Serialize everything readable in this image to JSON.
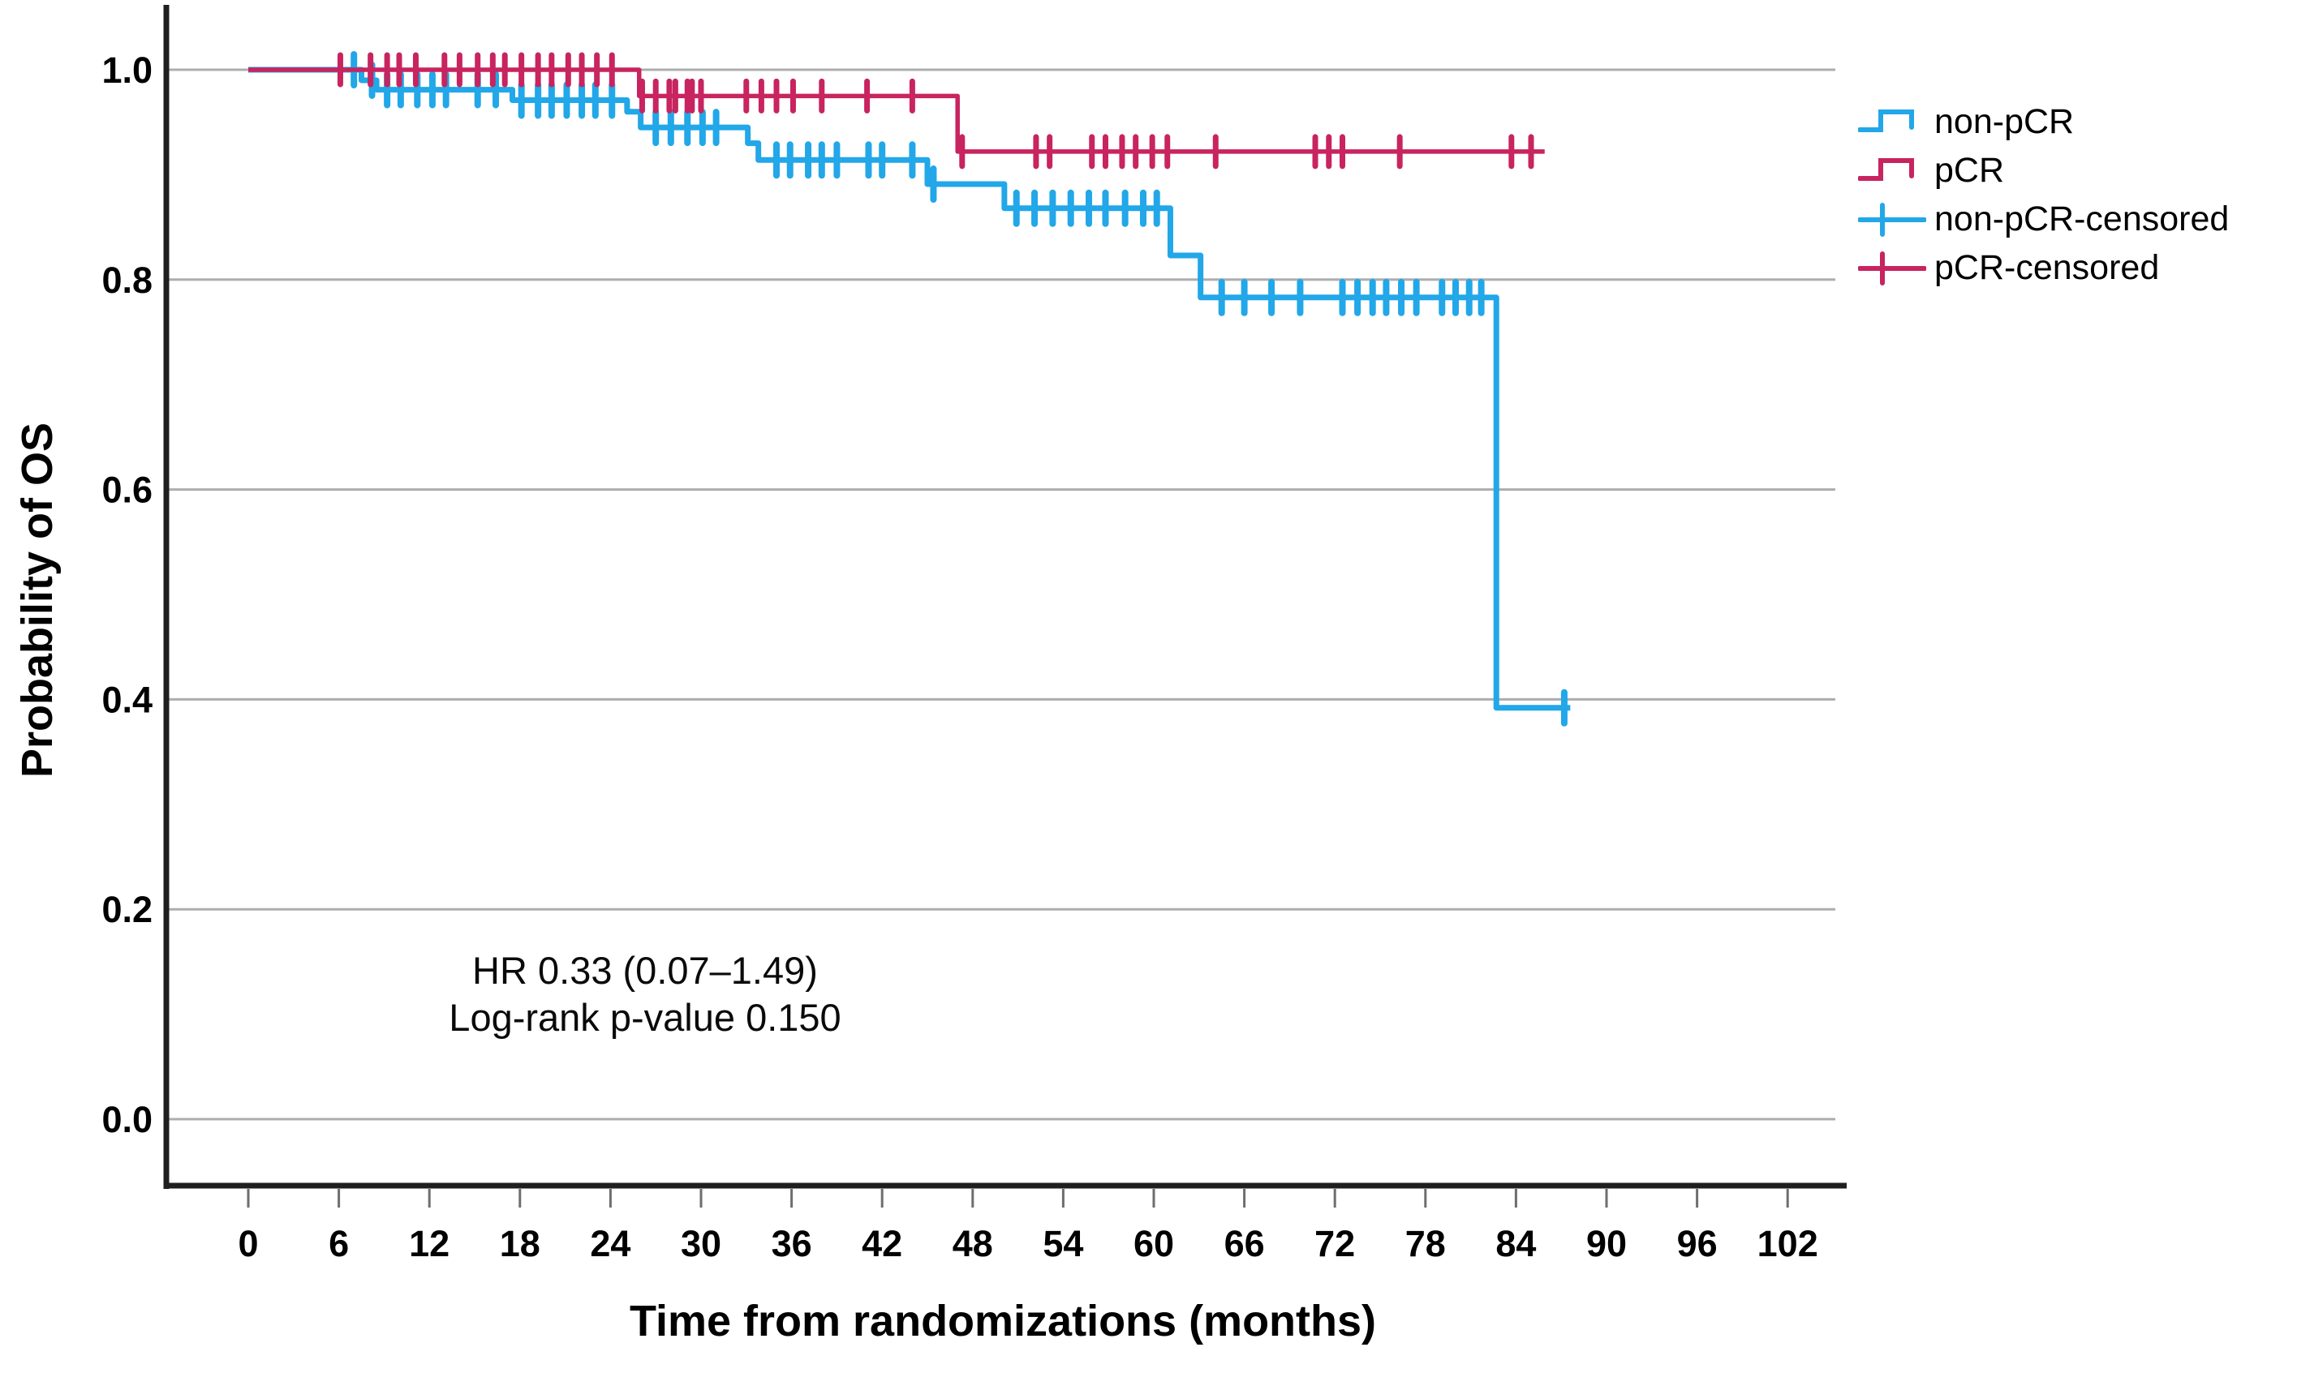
{
  "chart_data": {
    "type": "line",
    "subtype": "kaplan-meier-step",
    "title": "",
    "xlabel": "Time from randomizations (months)",
    "ylabel": "Probability of OS",
    "x_ticks": [
      0,
      6,
      12,
      18,
      24,
      30,
      36,
      42,
      48,
      54,
      60,
      66,
      72,
      78,
      84,
      90,
      96,
      102
    ],
    "y_ticks": [
      1.0,
      0.8,
      0.6,
      0.4,
      0.2,
      0.0
    ],
    "xlim": [
      -5.5,
      105.9
    ],
    "ylim": [
      -0.063,
      1.06
    ],
    "grid": "horizontal",
    "legend_position": "right",
    "annotation": {
      "line1": "HR 0.33 (0.07–1.49)",
      "line2": "Log-rank p-value 0.150"
    },
    "colors": {
      "non_pcr": "#22A7E8",
      "pcr": "#C8245F",
      "gridline": "#ADADAD",
      "spine": "#1f1f1f",
      "tick": "#6e6e6e",
      "text": "#000000"
    },
    "series": [
      {
        "name": "non-pCR",
        "color": "#22A7E8",
        "line_width": 7,
        "steps": [
          [
            0,
            1.0
          ],
          [
            7.5,
            0.99
          ],
          [
            8.5,
            0.981
          ],
          [
            17.5,
            0.971
          ],
          [
            25.1,
            0.96
          ],
          [
            26.0,
            0.945
          ],
          [
            33.1,
            0.93
          ],
          [
            33.8,
            0.914
          ],
          [
            45.0,
            0.891
          ],
          [
            50.1,
            0.868
          ],
          [
            61.1,
            0.823
          ],
          [
            63.1,
            0.783
          ],
          [
            82.7,
            0.392
          ]
        ],
        "end_month": 87.6,
        "censored": [
          [
            7.0,
            1.0
          ],
          [
            8.2,
            0.99
          ],
          [
            9.2,
            0.981
          ],
          [
            10.1,
            0.981
          ],
          [
            11.2,
            0.981
          ],
          [
            12.2,
            0.981
          ],
          [
            13.1,
            0.981
          ],
          [
            15.2,
            0.981
          ],
          [
            16.4,
            0.981
          ],
          [
            18.1,
            0.971
          ],
          [
            19.2,
            0.971
          ],
          [
            20.1,
            0.971
          ],
          [
            21.1,
            0.971
          ],
          [
            22.1,
            0.971
          ],
          [
            23.0,
            0.971
          ],
          [
            24.1,
            0.971
          ],
          [
            27.0,
            0.945
          ],
          [
            28.0,
            0.945
          ],
          [
            29.1,
            0.945
          ],
          [
            30.1,
            0.945
          ],
          [
            31.0,
            0.945
          ],
          [
            35.0,
            0.914
          ],
          [
            35.9,
            0.914
          ],
          [
            37.1,
            0.914
          ],
          [
            38.0,
            0.914
          ],
          [
            39.0,
            0.914
          ],
          [
            41.1,
            0.914
          ],
          [
            42.0,
            0.914
          ],
          [
            44.0,
            0.914
          ],
          [
            45.4,
            0.891
          ],
          [
            50.9,
            0.868
          ],
          [
            52.1,
            0.868
          ],
          [
            53.3,
            0.868
          ],
          [
            54.5,
            0.868
          ],
          [
            55.7,
            0.868
          ],
          [
            56.8,
            0.868
          ],
          [
            58.1,
            0.868
          ],
          [
            59.3,
            0.868
          ],
          [
            60.2,
            0.868
          ],
          [
            64.5,
            0.783
          ],
          [
            66.0,
            0.783
          ],
          [
            67.8,
            0.783
          ],
          [
            69.7,
            0.783
          ],
          [
            72.5,
            0.783
          ],
          [
            73.5,
            0.783
          ],
          [
            74.5,
            0.783
          ],
          [
            75.4,
            0.783
          ],
          [
            76.4,
            0.783
          ],
          [
            77.4,
            0.783
          ],
          [
            79.1,
            0.783
          ],
          [
            80.0,
            0.783
          ],
          [
            80.9,
            0.783
          ],
          [
            81.7,
            0.783
          ],
          [
            87.2,
            0.392
          ]
        ]
      },
      {
        "name": "pCR",
        "color": "#C8245F",
        "line_width": 5.5,
        "steps": [
          [
            0,
            1.0
          ],
          [
            25.9,
            0.975
          ],
          [
            47.0,
            0.922
          ]
        ],
        "end_month": 85.9,
        "censored": [
          [
            6.1,
            1.0
          ],
          [
            8.1,
            1.0
          ],
          [
            9.2,
            1.0
          ],
          [
            10.0,
            1.0
          ],
          [
            11.1,
            1.0
          ],
          [
            13.0,
            1.0
          ],
          [
            14.0,
            1.0
          ],
          [
            15.2,
            1.0
          ],
          [
            16.2,
            1.0
          ],
          [
            17.0,
            1.0
          ],
          [
            18.1,
            1.0
          ],
          [
            19.2,
            1.0
          ],
          [
            20.1,
            1.0
          ],
          [
            21.2,
            1.0
          ],
          [
            22.1,
            1.0
          ],
          [
            23.1,
            1.0
          ],
          [
            24.1,
            1.0
          ],
          [
            26.1,
            0.975
          ],
          [
            27.0,
            0.975
          ],
          [
            27.9,
            0.975
          ],
          [
            28.3,
            0.975
          ],
          [
            29.1,
            0.975
          ],
          [
            29.4,
            0.975
          ],
          [
            30.0,
            0.975
          ],
          [
            33.0,
            0.975
          ],
          [
            34.0,
            0.975
          ],
          [
            35.0,
            0.975
          ],
          [
            36.1,
            0.975
          ],
          [
            38.0,
            0.975
          ],
          [
            41.0,
            0.975
          ],
          [
            44.0,
            0.975
          ],
          [
            47.3,
            0.922
          ],
          [
            52.2,
            0.922
          ],
          [
            53.1,
            0.922
          ],
          [
            55.9,
            0.922
          ],
          [
            56.8,
            0.922
          ],
          [
            57.9,
            0.922
          ],
          [
            58.8,
            0.922
          ],
          [
            59.9,
            0.922
          ],
          [
            60.9,
            0.922
          ],
          [
            64.1,
            0.922
          ],
          [
            70.7,
            0.922
          ],
          [
            71.6,
            0.922
          ],
          [
            72.5,
            0.922
          ],
          [
            76.3,
            0.922
          ],
          [
            83.7,
            0.922
          ],
          [
            85.0,
            0.922
          ]
        ]
      }
    ],
    "legend": [
      {
        "label": "non-pCR",
        "series": 0,
        "marker": "step"
      },
      {
        "label": "pCR",
        "series": 1,
        "marker": "step"
      },
      {
        "label": "non-pCR-censored",
        "series": 0,
        "marker": "plus"
      },
      {
        "label": "pCR-censored",
        "series": 1,
        "marker": "plus"
      }
    ]
  }
}
